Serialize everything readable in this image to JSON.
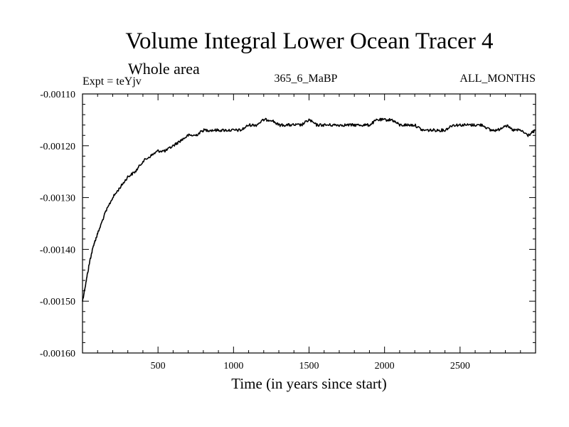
{
  "chart_data": {
    "type": "line",
    "title": "Volume Integral Lower Ocean Tracer 4",
    "subtitle": "Whole area",
    "annotations": {
      "experiment": "Expt = teYjv",
      "run": "365_6_MaBP",
      "months": "ALL_MONTHS"
    },
    "xlabel": "Time (in years since start)",
    "ylabel": "",
    "xlim": [
      0,
      3000
    ],
    "ylim": [
      -0.0016,
      -0.0011
    ],
    "x_ticks": [
      500,
      1000,
      1500,
      2000,
      2500
    ],
    "x_tick_labels": [
      "500",
      "1000",
      "1500",
      "2000",
      "2500"
    ],
    "y_ticks": [
      -0.0011,
      -0.0012,
      -0.0013,
      -0.0014,
      -0.0015,
      -0.0016
    ],
    "y_tick_labels": [
      "-0.00110",
      "-0.00120",
      "-0.00130",
      "-0.00140",
      "-0.00150",
      "-0.00160"
    ],
    "series": [
      {
        "name": "Volume Integral Lower Ocean Tracer 4",
        "color": "#000000",
        "x": [
          0,
          25,
          50,
          75,
          100,
          150,
          200,
          250,
          300,
          350,
          400,
          450,
          500,
          550,
          600,
          650,
          700,
          750,
          800,
          850,
          900,
          950,
          1000,
          1050,
          1100,
          1150,
          1200,
          1250,
          1300,
          1350,
          1400,
          1450,
          1500,
          1550,
          1600,
          1650,
          1700,
          1750,
          1800,
          1850,
          1900,
          1950,
          2000,
          2050,
          2100,
          2150,
          2200,
          2250,
          2300,
          2350,
          2400,
          2450,
          2500,
          2550,
          2600,
          2650,
          2700,
          2750,
          2800,
          2850,
          2900,
          2950,
          3000
        ],
        "values": [
          -0.0015,
          -0.00146,
          -0.00142,
          -0.00139,
          -0.00137,
          -0.00133,
          -0.0013,
          -0.00128,
          -0.00126,
          -0.00125,
          -0.00123,
          -0.00122,
          -0.00121,
          -0.00121,
          -0.0012,
          -0.00119,
          -0.00118,
          -0.00118,
          -0.00117,
          -0.00117,
          -0.00117,
          -0.00117,
          -0.00117,
          -0.00117,
          -0.00116,
          -0.00116,
          -0.00115,
          -0.00115,
          -0.00116,
          -0.00116,
          -0.00116,
          -0.00116,
          -0.00115,
          -0.00116,
          -0.00116,
          -0.00116,
          -0.00116,
          -0.00116,
          -0.00116,
          -0.00116,
          -0.00116,
          -0.00115,
          -0.00115,
          -0.00115,
          -0.00116,
          -0.00116,
          -0.00116,
          -0.00117,
          -0.00117,
          -0.00117,
          -0.00117,
          -0.00116,
          -0.00116,
          -0.00116,
          -0.00116,
          -0.00116,
          -0.00117,
          -0.00117,
          -0.00116,
          -0.00117,
          -0.00117,
          -0.00118,
          -0.00117
        ]
      }
    ],
    "grid": false,
    "legend": "none"
  }
}
